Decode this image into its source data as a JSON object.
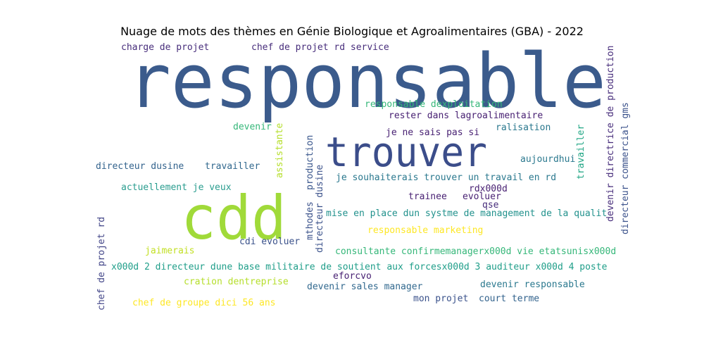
{
  "chart_data": {
    "type": "wordcloud",
    "title": "Nuage de mots des thèmes en Génie Biologique et Agroalimentaires (GBA) - 2022",
    "words": [
      {
        "text": "responsable",
        "color": "#3b5b8c"
      },
      {
        "text": "trouver",
        "color": "#3b4d8a"
      },
      {
        "text": "cdd",
        "color": "#a0da39"
      },
      {
        "text": "charge de projet",
        "color": "#472d7b"
      },
      {
        "text": "chef de projet rd service",
        "color": "#472d7b"
      },
      {
        "text": "responsable dexploitation",
        "color": "#35b779"
      },
      {
        "text": "rester dans lagroalimentaire",
        "color": "#482173"
      },
      {
        "text": "devenir",
        "color": "#35b779"
      },
      {
        "text": "ralisation",
        "color": "#2a788e"
      },
      {
        "text": "je ne sais pas si",
        "color": "#482173"
      },
      {
        "text": "aujourdhui",
        "color": "#2a788e"
      },
      {
        "text": "directeur dusine",
        "color": "#33638d"
      },
      {
        "text": "travailler",
        "color": "#31688e"
      },
      {
        "text": "je souhaiterais trouver un travail en rd",
        "color": "#2a788e"
      },
      {
        "text": "actuellement je veux",
        "color": "#2a9d8f"
      },
      {
        "text": "rdx000d",
        "color": "#482173"
      },
      {
        "text": "trainee",
        "color": "#482173"
      },
      {
        "text": "evoluer",
        "color": "#482173"
      },
      {
        "text": "qse",
        "color": "#472d7b"
      },
      {
        "text": "mise en place dun systme de management de la qualit",
        "color": "#21918c"
      },
      {
        "text": "responsable marketing",
        "color": "#fde725"
      },
      {
        "text": "cdi evoluer",
        "color": "#3b528b"
      },
      {
        "text": "jaimerais",
        "color": "#c2df23"
      },
      {
        "text": "consultante confirmemanagerx000d vie etatsunisx000d",
        "color": "#35b779"
      },
      {
        "text": "x000d 2 directeur dune base militaire de soutient aux forcesx000d 3 auditeur x000d 4 poste",
        "color": "#1f9e89"
      },
      {
        "text": "eforcvo",
        "color": "#482173"
      },
      {
        "text": "cration dentreprise",
        "color": "#b5de2b"
      },
      {
        "text": "devenir sales manager",
        "color": "#31688e"
      },
      {
        "text": "devenir responsable",
        "color": "#2a788e"
      },
      {
        "text": "chef de groupe dici 56 ans",
        "color": "#fde725"
      },
      {
        "text": "mon projet",
        "color": "#3b528b"
      },
      {
        "text": "court terme",
        "color": "#33638d"
      },
      {
        "text": "chef de projet rd",
        "color": "#414487"
      },
      {
        "text": "assistante",
        "color": "#b5de2b"
      },
      {
        "text": "production",
        "color": "#39568c"
      },
      {
        "text": "mthodes",
        "color": "#3b528b"
      },
      {
        "text": "directeur dusine",
        "color": "#3b528b"
      },
      {
        "text": "travailler",
        "color": "#21a685"
      },
      {
        "text": "devenir directrice de production",
        "color": "#472d7b"
      },
      {
        "text": "directeur commercial gms",
        "color": "#3b528b"
      }
    ]
  }
}
